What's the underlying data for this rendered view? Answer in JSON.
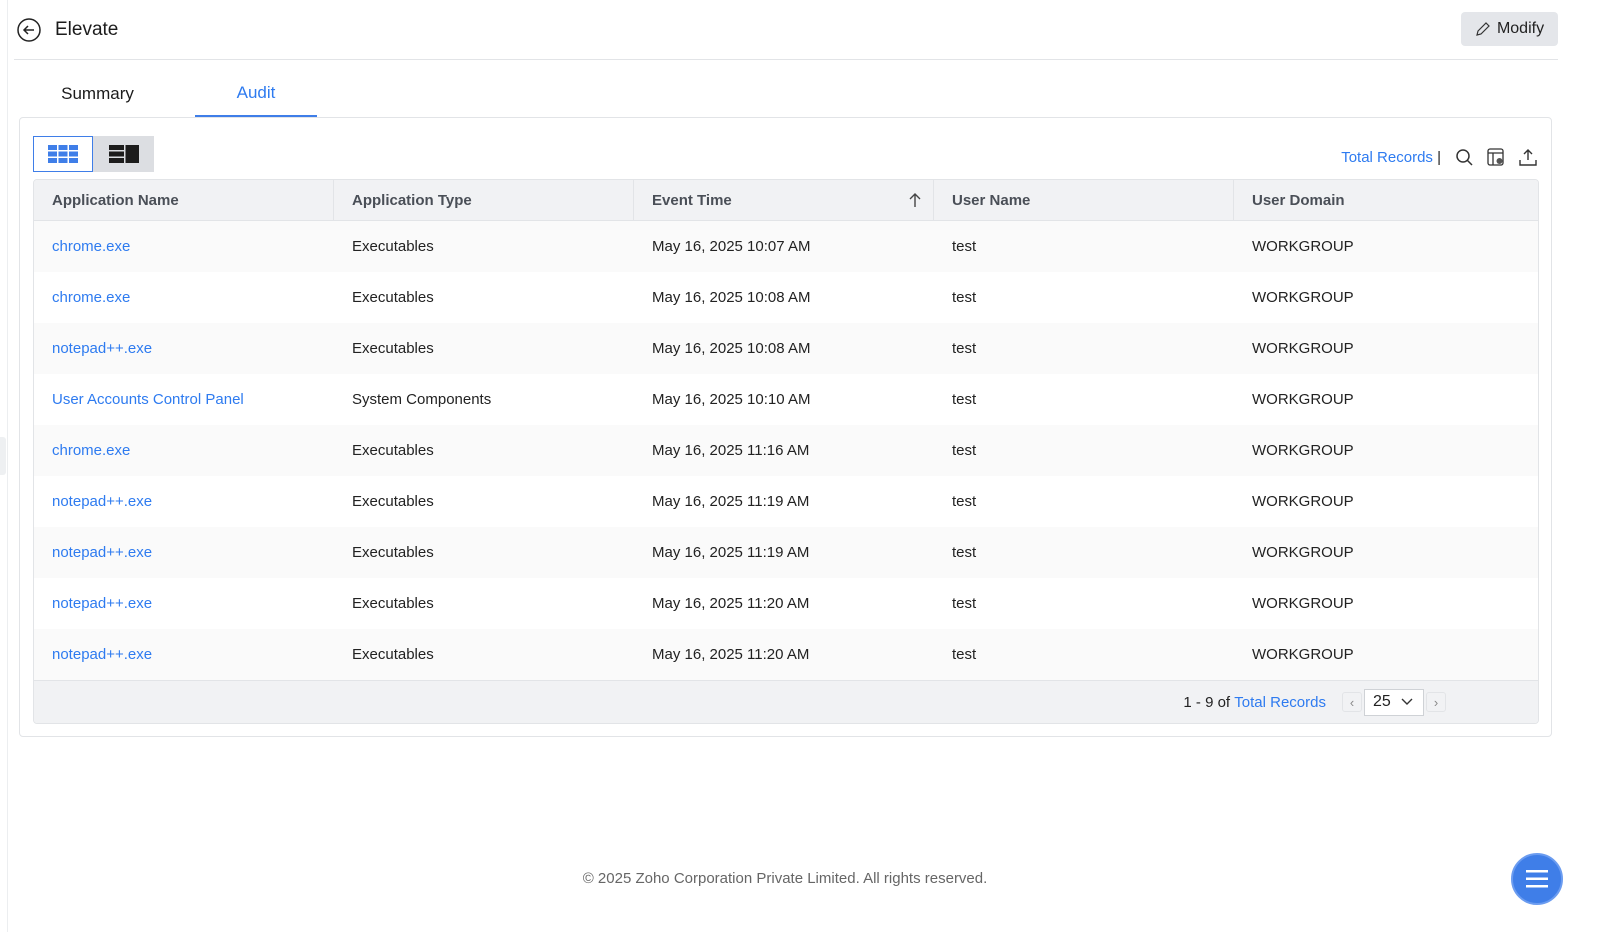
{
  "header": {
    "title": "Elevate",
    "modify_label": "Modify"
  },
  "tabs": [
    {
      "label": "Summary",
      "active": false
    },
    {
      "label": "Audit",
      "active": true
    }
  ],
  "toolbar": {
    "total_records_label": "Total Records",
    "separator": "|"
  },
  "table": {
    "columns": [
      "Application Name",
      "Application Type",
      "Event Time",
      "User Name",
      "User Domain"
    ],
    "sort": {
      "column": "Event Time",
      "direction": "ascending"
    },
    "rows": [
      [
        "chrome.exe",
        "Executables",
        "May 16, 2025 10:07 AM",
        "test",
        "WORKGROUP"
      ],
      [
        "chrome.exe",
        "Executables",
        "May 16, 2025 10:08 AM",
        "test",
        "WORKGROUP"
      ],
      [
        "notepad++.exe",
        "Executables",
        "May 16, 2025 10:08 AM",
        "test",
        "WORKGROUP"
      ],
      [
        "User Accounts Control Panel",
        "System Components",
        "May 16, 2025 10:10 AM",
        "test",
        "WORKGROUP"
      ],
      [
        "chrome.exe",
        "Executables",
        "May 16, 2025 11:16 AM",
        "test",
        "WORKGROUP"
      ],
      [
        "notepad++.exe",
        "Executables",
        "May 16, 2025 11:19 AM",
        "test",
        "WORKGROUP"
      ],
      [
        "notepad++.exe",
        "Executables",
        "May 16, 2025 11:19 AM",
        "test",
        "WORKGROUP"
      ],
      [
        "notepad++.exe",
        "Executables",
        "May 16, 2025 11:20 AM",
        "test",
        "WORKGROUP"
      ],
      [
        "notepad++.exe",
        "Executables",
        "May 16, 2025 11:20 AM",
        "test",
        "WORKGROUP"
      ]
    ]
  },
  "pagination": {
    "range": "1 - 9 of",
    "total_label": "Total Records",
    "page_size": "25"
  },
  "footer": {
    "copyright": "© 2025 Zoho Corporation Private Limited. All rights reserved."
  },
  "colors": {
    "accent": "#2e7bf0",
    "fab": "#3f7ee8"
  }
}
